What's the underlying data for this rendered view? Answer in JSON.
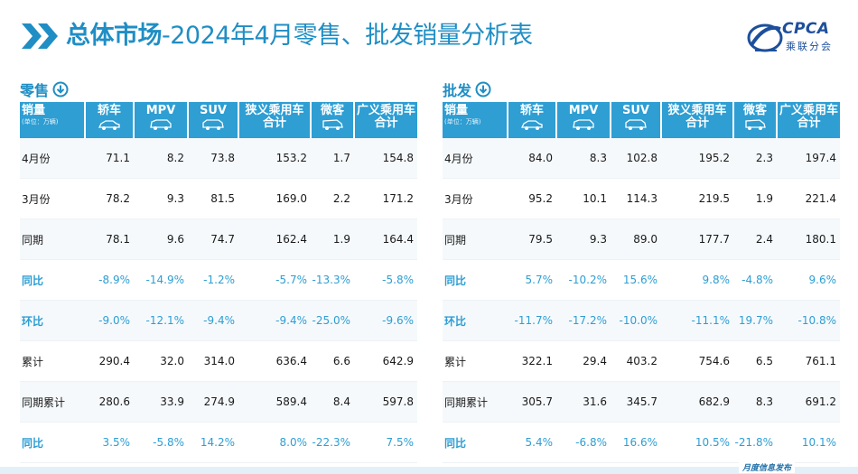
{
  "header": {
    "title_bold": "总体市场",
    "title_rest": "-2024年4月零售、批发销量分析表",
    "logo_text": "CPCA",
    "logo_subtext": "乘联分会"
  },
  "columns": {
    "row_header": "销量",
    "unit_note": "(单位：万辆)",
    "sedan": "轿车",
    "mpv": "MPV",
    "suv": "SUV",
    "narrow_total_l1": "狭义乘用车",
    "narrow_total_l2": "合计",
    "micro": "微客",
    "broad_total_l1": "广义乘用车",
    "broad_total_l2": "合计"
  },
  "retail": {
    "label": "零售",
    "rows": [
      {
        "label": "4月份",
        "pct": false,
        "v": [
          "71.1",
          "8.2",
          "73.8",
          "153.2",
          "1.7",
          "154.8"
        ]
      },
      {
        "label": "3月份",
        "pct": false,
        "v": [
          "78.2",
          "9.3",
          "81.5",
          "169.0",
          "2.2",
          "171.2"
        ]
      },
      {
        "label": "同期",
        "pct": false,
        "v": [
          "78.1",
          "9.6",
          "74.7",
          "162.4",
          "1.9",
          "164.4"
        ]
      },
      {
        "label": "同比",
        "pct": true,
        "v": [
          "-8.9%",
          "-14.9%",
          "-1.2%",
          "-5.7%",
          "-13.3%",
          "-5.8%"
        ]
      },
      {
        "label": "环比",
        "pct": true,
        "v": [
          "-9.0%",
          "-12.1%",
          "-9.4%",
          "-9.4%",
          "-25.0%",
          "-9.6%"
        ]
      },
      {
        "label": "累计",
        "pct": false,
        "v": [
          "290.4",
          "32.0",
          "314.0",
          "636.4",
          "6.6",
          "642.9"
        ]
      },
      {
        "label": "同期累计",
        "pct": false,
        "v": [
          "280.6",
          "33.9",
          "274.9",
          "589.4",
          "8.4",
          "597.8"
        ]
      },
      {
        "label": "同比",
        "pct": true,
        "v": [
          "3.5%",
          "-5.8%",
          "14.2%",
          "8.0%",
          "-22.3%",
          "7.5%"
        ]
      }
    ]
  },
  "wholesale": {
    "label": "批发",
    "rows": [
      {
        "label": "4月份",
        "pct": false,
        "v": [
          "84.0",
          "8.3",
          "102.8",
          "195.2",
          "2.3",
          "197.4"
        ]
      },
      {
        "label": "3月份",
        "pct": false,
        "v": [
          "95.2",
          "10.1",
          "114.3",
          "219.5",
          "1.9",
          "221.4"
        ]
      },
      {
        "label": "同期",
        "pct": false,
        "v": [
          "79.5",
          "9.3",
          "89.0",
          "177.7",
          "2.4",
          "180.1"
        ]
      },
      {
        "label": "同比",
        "pct": true,
        "v": [
          "5.7%",
          "-10.2%",
          "15.6%",
          "9.8%",
          "-4.8%",
          "9.6%"
        ]
      },
      {
        "label": "环比",
        "pct": true,
        "v": [
          "-11.7%",
          "-17.2%",
          "-10.0%",
          "-11.1%",
          "19.7%",
          "-10.8%"
        ]
      },
      {
        "label": "累计",
        "pct": false,
        "v": [
          "322.1",
          "29.4",
          "403.2",
          "754.6",
          "6.5",
          "761.1"
        ]
      },
      {
        "label": "同期累计",
        "pct": false,
        "v": [
          "305.7",
          "31.6",
          "345.7",
          "682.9",
          "8.3",
          "691.2"
        ]
      },
      {
        "label": "同比",
        "pct": true,
        "v": [
          "5.4%",
          "-6.8%",
          "16.6%",
          "10.5%",
          "-21.8%",
          "10.1%"
        ]
      }
    ]
  },
  "footer": {
    "text": "月度信息发布"
  },
  "colors": {
    "accent": "#1f8ec4",
    "header_bg": "#2e9ed3",
    "logo": "#1d4f9c"
  }
}
